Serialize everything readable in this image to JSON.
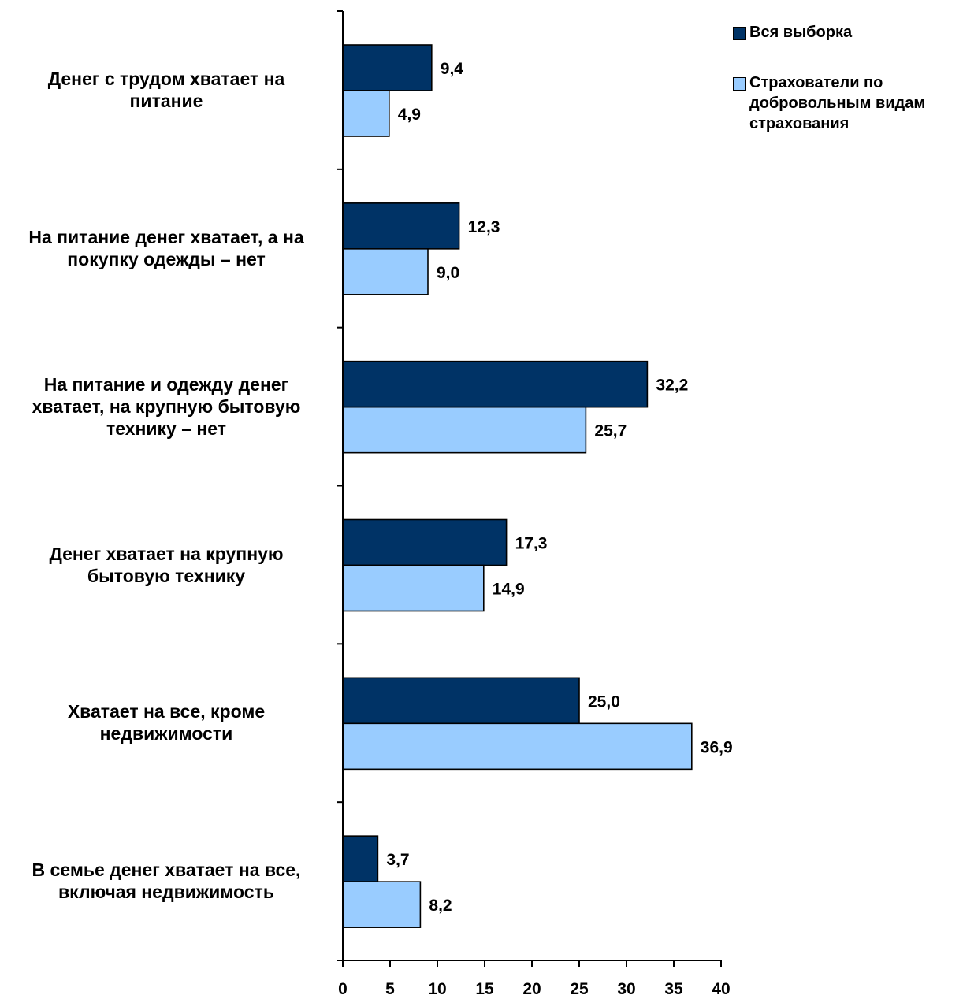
{
  "chart_data": {
    "type": "bar",
    "orientation": "horizontal",
    "categories": [
      "Денег с трудом хватает на питание",
      "На питание денег хватает, а на покупку одежды – нет",
      "На питание и одежду денег хватает, на крупную бытовую технику – нет",
      "Денег хватает на крупную бытовую технику",
      "Хватает на все, кроме недвижимости",
      "В семье денег хватает на все, включая недвижимость"
    ],
    "series": [
      {
        "name": "Вся выборка",
        "color": "#003366",
        "values": [
          9.4,
          12.3,
          32.2,
          17.3,
          25.0,
          3.7
        ],
        "labels": [
          "9,4",
          "12,3",
          "32,2",
          "17,3",
          "25,0",
          "3,7"
        ]
      },
      {
        "name": "Страхователи по добровольным видам страхования",
        "color": "#99ccff",
        "values": [
          4.9,
          9.0,
          25.7,
          14.9,
          36.9,
          8.2
        ],
        "labels": [
          "4,9",
          "9,0",
          "25,7",
          "14,9",
          "36,9",
          "8,2"
        ]
      }
    ],
    "xlim": [
      0,
      40
    ],
    "xticks": [
      0,
      5,
      10,
      15,
      20,
      25,
      30,
      35,
      40
    ],
    "title": "",
    "xlabel": "",
    "ylabel": "",
    "grid": false,
    "legend": "top-right"
  }
}
